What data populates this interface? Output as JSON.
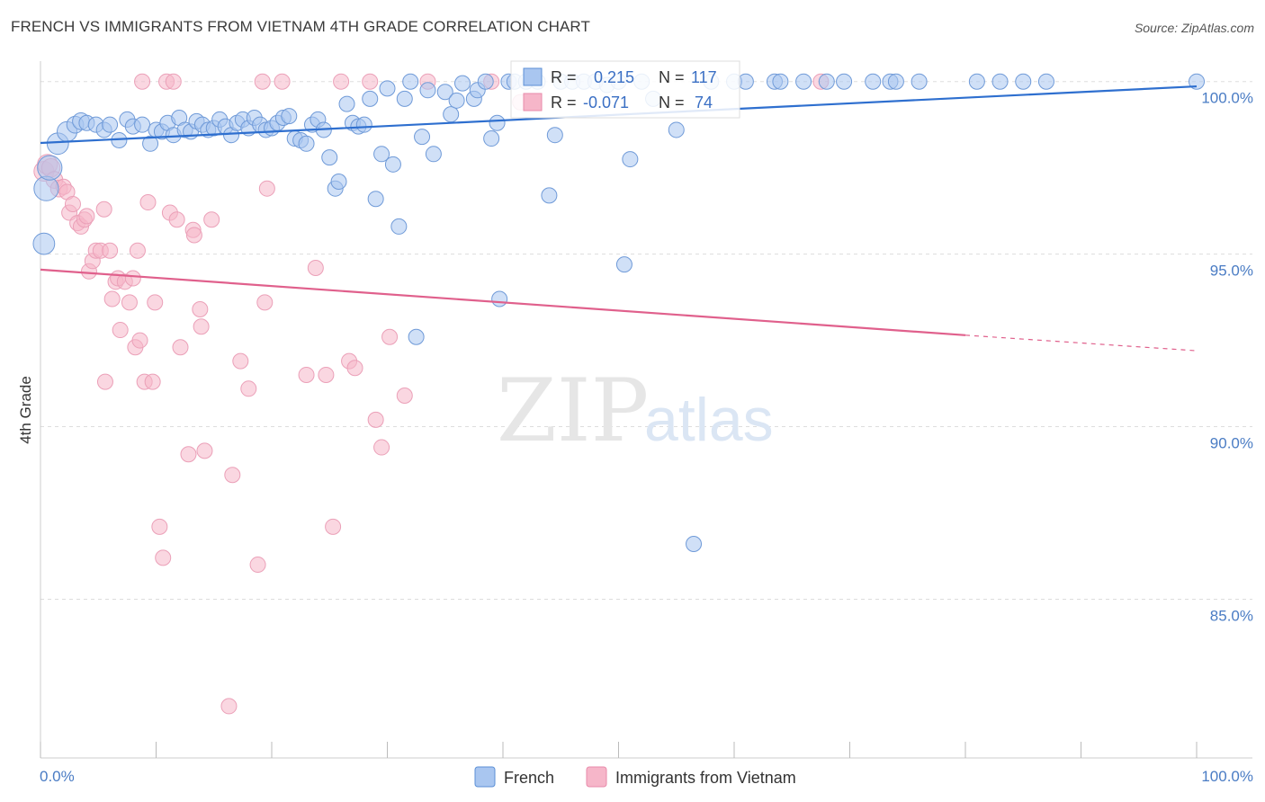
{
  "title": "FRENCH VS IMMIGRANTS FROM VIETNAM 4TH GRADE CORRELATION CHART",
  "source": "Source: ZipAtlas.com",
  "watermark": {
    "zip": "ZIP",
    "atlas": "atlas"
  },
  "colors": {
    "french_fill": "#a9c6f0",
    "french_line": "#2e6fcf",
    "vietnam_fill": "#f6b6c9",
    "vietnam_line": "#e0608c",
    "tick_text": "#4a7cc4",
    "grid": "#dddddd"
  },
  "legend_box": {
    "french": {
      "r_label": "R =",
      "r_value": "0.215",
      "n_label": "N =",
      "n_value": "117"
    },
    "vietnam": {
      "r_label": "R =",
      "r_value": "-0.071",
      "n_label": "N =",
      "n_value": "74"
    }
  },
  "legend_bottom": [
    "French",
    "Immigrants from Vietnam"
  ],
  "chart_data": {
    "type": "scatter",
    "ylabel": "4th Grade",
    "x_tick_labels": [
      "0.0%",
      "100.0%"
    ],
    "y_tick_labels": [
      "100.0%",
      "95.0%",
      "90.0%",
      "85.0%"
    ],
    "y_ticks": [
      100,
      95,
      90,
      85
    ],
    "xlim": [
      0,
      100
    ],
    "ylim": [
      80.4,
      100.8
    ],
    "grid": true,
    "legend_placement": "bottom-center",
    "series": [
      {
        "name": "French",
        "trend": {
          "x": [
            0,
            100
          ],
          "y": [
            98.22,
            99.86
          ]
        },
        "points": [
          [
            0.3,
            95.3,
            1.4
          ],
          [
            0.5,
            96.9,
            1.6
          ],
          [
            0.8,
            97.5,
            1.6
          ],
          [
            1.5,
            98.2,
            1.4
          ],
          [
            2.3,
            98.55,
            1.3
          ],
          [
            3.0,
            98.75,
            1.1
          ],
          [
            3.5,
            98.85,
            1.1
          ],
          [
            4.0,
            98.8,
            1.0
          ],
          [
            4.8,
            98.75,
            1.0
          ],
          [
            5.5,
            98.6,
            1.0
          ],
          [
            6.0,
            98.75,
            1.0
          ],
          [
            6.8,
            98.3,
            1.0
          ],
          [
            7.5,
            98.9,
            1.0
          ],
          [
            8.0,
            98.7,
            1.0
          ],
          [
            8.8,
            98.75,
            1.0
          ],
          [
            9.5,
            98.2,
            1.0
          ],
          [
            10.0,
            98.6,
            1.0
          ],
          [
            10.5,
            98.55,
            1.0
          ],
          [
            11.0,
            98.8,
            1.0
          ],
          [
            11.5,
            98.45,
            1.0
          ],
          [
            12.0,
            98.95,
            1.0
          ],
          [
            12.5,
            98.6,
            1.0
          ],
          [
            13.0,
            98.55,
            1.0
          ],
          [
            13.5,
            98.85,
            1.0
          ],
          [
            14.0,
            98.75,
            1.0
          ],
          [
            14.5,
            98.6,
            1.0
          ],
          [
            15.0,
            98.65,
            1.0
          ],
          [
            15.5,
            98.9,
            1.0
          ],
          [
            16.0,
            98.7,
            1.0
          ],
          [
            16.5,
            98.45,
            1.0
          ],
          [
            17.0,
            98.8,
            1.0
          ],
          [
            17.5,
            98.9,
            1.0
          ],
          [
            18.0,
            98.65,
            1.0
          ],
          [
            18.5,
            98.95,
            1.0
          ],
          [
            19.0,
            98.75,
            1.0
          ],
          [
            19.5,
            98.6,
            1.0
          ],
          [
            20.0,
            98.65,
            1.0
          ],
          [
            20.5,
            98.8,
            1.0
          ],
          [
            21.0,
            98.95,
            1.0
          ],
          [
            21.5,
            99.0,
            1.0
          ],
          [
            22.0,
            98.35,
            1.0
          ],
          [
            22.5,
            98.3,
            1.0
          ],
          [
            23.0,
            98.2,
            1.0
          ],
          [
            23.5,
            98.75,
            1.0
          ],
          [
            24.0,
            98.9,
            1.0
          ],
          [
            24.5,
            98.6,
            1.0
          ],
          [
            25.0,
            97.8,
            1.0
          ],
          [
            25.5,
            96.9,
            1.0
          ],
          [
            25.8,
            97.1,
            1.0
          ],
          [
            26.5,
            99.35,
            1.0
          ],
          [
            27.0,
            98.8,
            1.0
          ],
          [
            27.5,
            98.7,
            1.0
          ],
          [
            28.0,
            98.75,
            1.0
          ],
          [
            28.5,
            99.5,
            1.0
          ],
          [
            29.0,
            96.6,
            1.0
          ],
          [
            29.5,
            97.9,
            1.0
          ],
          [
            30.0,
            99.8,
            1.0
          ],
          [
            30.5,
            97.6,
            1.0
          ],
          [
            31.0,
            95.8,
            1.0
          ],
          [
            31.5,
            99.5,
            1.0
          ],
          [
            32.0,
            100.0,
            1.0
          ],
          [
            32.5,
            92.6,
            1.0
          ],
          [
            33.0,
            98.4,
            1.0
          ],
          [
            33.5,
            99.75,
            1.0
          ],
          [
            34.0,
            97.9,
            1.0
          ],
          [
            35.0,
            99.7,
            1.0
          ],
          [
            35.5,
            99.05,
            1.0
          ],
          [
            36.0,
            99.45,
            1.0
          ],
          [
            36.5,
            99.95,
            1.0
          ],
          [
            37.5,
            99.5,
            1.0
          ],
          [
            37.8,
            99.75,
            1.0
          ],
          [
            38.5,
            100.0,
            1.0
          ],
          [
            39.0,
            98.35,
            1.0
          ],
          [
            39.5,
            98.8,
            1.0
          ],
          [
            39.7,
            93.7,
            1.0
          ],
          [
            40.5,
            100.0,
            1.0
          ],
          [
            41.0,
            100.0,
            1.0
          ],
          [
            42.0,
            100.0,
            1.0
          ],
          [
            42.5,
            99.4,
            1.0
          ],
          [
            43.0,
            100.0,
            1.0
          ],
          [
            44.0,
            96.7,
            1.0
          ],
          [
            44.5,
            98.45,
            1.0
          ],
          [
            45.0,
            100.0,
            1.0
          ],
          [
            46.0,
            100.0,
            1.0
          ],
          [
            47.0,
            100.0,
            1.0
          ],
          [
            48.0,
            100.0,
            1.0
          ],
          [
            49.0,
            99.9,
            1.0
          ],
          [
            50.0,
            100.0,
            1.0
          ],
          [
            50.5,
            94.7,
            1.0
          ],
          [
            51.0,
            97.75,
            1.0
          ],
          [
            52.0,
            100.0,
            1.0
          ],
          [
            53.0,
            99.5,
            1.0
          ],
          [
            55.0,
            98.6,
            1.0
          ],
          [
            56.5,
            86.6,
            1.0
          ],
          [
            58.0,
            100.0,
            1.0
          ],
          [
            60.0,
            100.0,
            1.0
          ],
          [
            61.0,
            100.0,
            1.0
          ],
          [
            63.5,
            100.0,
            1.0
          ],
          [
            64.0,
            100.0,
            1.0
          ],
          [
            66.0,
            100.0,
            1.0
          ],
          [
            68.0,
            100.0,
            1.0
          ],
          [
            69.5,
            100.0,
            1.0
          ],
          [
            72.0,
            100.0,
            1.0
          ],
          [
            73.5,
            100.0,
            1.0
          ],
          [
            74.0,
            100.0,
            1.0
          ],
          [
            76.0,
            100.0,
            1.0
          ],
          [
            81.0,
            100.0,
            1.0
          ],
          [
            83.0,
            100.0,
            1.0
          ],
          [
            85.0,
            100.0,
            1.0
          ],
          [
            87.0,
            100.0,
            1.0
          ],
          [
            100.0,
            100.0,
            1.0
          ]
        ]
      },
      {
        "name": "Immigrants from Vietnam",
        "trend": {
          "x": [
            0,
            80
          ],
          "y": [
            94.55,
            92.65
          ]
        },
        "trend_dashed": {
          "x": [
            80,
            100
          ],
          "y": [
            92.65,
            92.2
          ]
        },
        "points": [
          [
            0.3,
            97.4,
            1.3
          ],
          [
            0.6,
            97.6,
            1.3
          ],
          [
            0.9,
            97.5,
            1.2
          ],
          [
            1.2,
            97.15,
            1.1
          ],
          [
            1.6,
            96.9,
            1.1
          ],
          [
            2.0,
            96.95,
            1.0
          ],
          [
            2.3,
            96.8,
            1.0
          ],
          [
            2.5,
            96.2,
            1.0
          ],
          [
            2.8,
            96.45,
            1.0
          ],
          [
            3.2,
            95.9,
            1.0
          ],
          [
            3.5,
            95.8,
            1.0
          ],
          [
            3.8,
            96.0,
            1.0
          ],
          [
            4.0,
            96.1,
            1.0
          ],
          [
            4.2,
            94.5,
            1.0
          ],
          [
            4.5,
            94.8,
            1.0
          ],
          [
            4.8,
            95.1,
            1.0
          ],
          [
            5.2,
            95.1,
            1.0
          ],
          [
            5.5,
            96.3,
            1.0
          ],
          [
            5.6,
            91.3,
            1.0
          ],
          [
            6.0,
            95.1,
            1.0
          ],
          [
            6.2,
            93.7,
            1.0
          ],
          [
            6.5,
            94.2,
            1.0
          ],
          [
            6.7,
            94.3,
            1.0
          ],
          [
            6.9,
            92.8,
            1.0
          ],
          [
            7.3,
            94.2,
            1.0
          ],
          [
            7.7,
            93.6,
            1.0
          ],
          [
            8.0,
            94.3,
            1.0
          ],
          [
            8.2,
            92.3,
            1.0
          ],
          [
            8.4,
            95.1,
            1.0
          ],
          [
            8.6,
            92.5,
            1.0
          ],
          [
            8.8,
            100.0,
            1.0
          ],
          [
            9.0,
            91.3,
            1.0
          ],
          [
            9.3,
            96.5,
            1.0
          ],
          [
            9.7,
            91.3,
            1.0
          ],
          [
            9.9,
            93.6,
            1.0
          ],
          [
            10.3,
            87.1,
            1.0
          ],
          [
            10.6,
            86.2,
            1.0
          ],
          [
            10.9,
            100.0,
            1.0
          ],
          [
            11.2,
            96.2,
            1.0
          ],
          [
            11.5,
            100.0,
            1.0
          ],
          [
            11.8,
            96.0,
            1.0
          ],
          [
            12.1,
            92.3,
            1.0
          ],
          [
            12.8,
            89.2,
            1.0
          ],
          [
            13.2,
            95.7,
            1.0
          ],
          [
            13.3,
            95.55,
            1.0
          ],
          [
            13.8,
            93.4,
            1.0
          ],
          [
            13.9,
            92.9,
            1.0
          ],
          [
            14.2,
            89.3,
            1.0
          ],
          [
            14.8,
            96.0,
            1.0
          ],
          [
            16.3,
            81.9,
            1.0
          ],
          [
            16.6,
            88.6,
            1.0
          ],
          [
            17.3,
            91.9,
            1.0
          ],
          [
            18.0,
            91.1,
            1.0
          ],
          [
            18.8,
            86.0,
            1.0
          ],
          [
            19.2,
            100.0,
            1.0
          ],
          [
            19.4,
            93.6,
            1.0
          ],
          [
            19.6,
            96.9,
            1.0
          ],
          [
            20.9,
            100.0,
            1.0
          ],
          [
            23.0,
            91.5,
            1.0
          ],
          [
            23.8,
            94.6,
            1.0
          ],
          [
            24.7,
            91.5,
            1.0
          ],
          [
            25.3,
            87.1,
            1.0
          ],
          [
            26.0,
            100.0,
            1.0
          ],
          [
            26.7,
            91.9,
            1.0
          ],
          [
            27.2,
            91.7,
            1.0
          ],
          [
            28.5,
            100.0,
            1.0
          ],
          [
            29.0,
            90.2,
            1.0
          ],
          [
            29.5,
            89.4,
            1.0
          ],
          [
            30.2,
            92.6,
            1.0
          ],
          [
            31.5,
            90.9,
            1.0
          ],
          [
            33.5,
            100.0,
            1.0
          ],
          [
            39.0,
            100.0,
            1.0
          ],
          [
            41.5,
            99.4,
            1.0
          ],
          [
            67.5,
            100.0,
            1.0
          ]
        ]
      }
    ]
  }
}
